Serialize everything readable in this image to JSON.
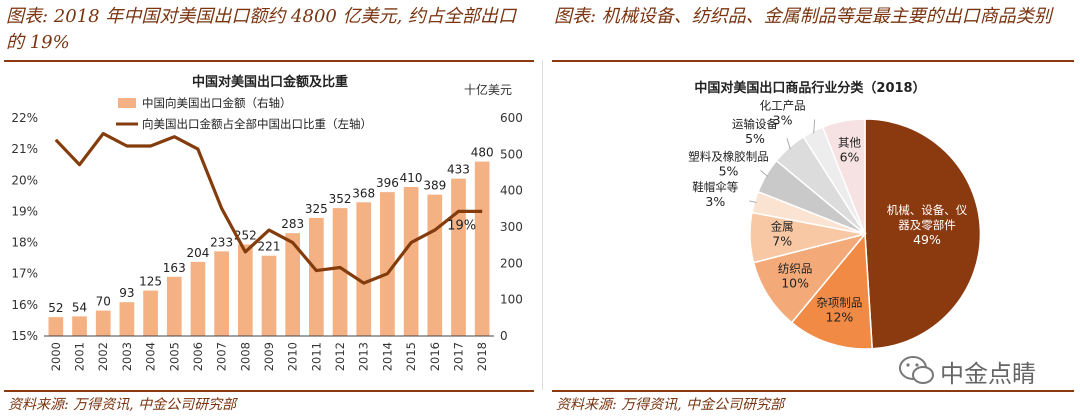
{
  "left": {
    "figure_title": "图表: 2018 年中国对美国出口额约 4800 亿美元, 约占全部出口的 19%",
    "source": "资料来源: 万得资讯, 中金公司研究部"
  },
  "right": {
    "figure_title": "图表: 机械设备、纺织品、金属制品等是最主要的出口商品类别",
    "source": "资料来源: 万得资讯, 中金公司研究部"
  },
  "watermark": "中金点睛",
  "colors": {
    "bar": "#F4B183",
    "line": "#843C0C",
    "title": "#7a3410"
  },
  "chart_data": [
    {
      "type": "bar+line",
      "title": "中国对美国出口金额及比重",
      "right_axis_unit": "十亿美元",
      "categories": [
        "2000",
        "2001",
        "2002",
        "2003",
        "2004",
        "2005",
        "2006",
        "2007",
        "2008",
        "2009",
        "2010",
        "2011",
        "2012",
        "2013",
        "2014",
        "2015",
        "2016",
        "2017",
        "2018"
      ],
      "series": [
        {
          "name": "中国向美国出口金额（右轴）",
          "kind": "bar",
          "axis": "right",
          "values": [
            52,
            54,
            70,
            93,
            125,
            163,
            204,
            233,
            252,
            221,
            283,
            325,
            352,
            368,
            396,
            410,
            389,
            433,
            480
          ]
        },
        {
          "name": "向美国出口金额占全部中国出口比重（左轴）",
          "kind": "line",
          "axis": "left",
          "values": [
            21.3,
            20.5,
            21.5,
            21.1,
            21.1,
            21.4,
            21.0,
            19.1,
            17.7,
            18.4,
            18.0,
            17.1,
            17.2,
            16.7,
            17.0,
            18.0,
            18.4,
            19.0,
            19.0
          ]
        }
      ],
      "end_label": "19%",
      "left_ylim": [
        15,
        22
      ],
      "left_yticks": [
        "15%",
        "16%",
        "17%",
        "18%",
        "19%",
        "20%",
        "21%",
        "22%"
      ],
      "right_ylim": [
        0,
        600
      ],
      "right_yticks": [
        "0",
        "100",
        "200",
        "300",
        "400",
        "500",
        "600"
      ]
    },
    {
      "type": "pie",
      "title": "中国对美国出口商品行业分类（2018）",
      "slices": [
        {
          "label": "机械、设备、仪器及零部件",
          "value": 49,
          "display": "49%",
          "color": "#8B3A0F"
        },
        {
          "label": "杂项制品",
          "value": 12,
          "display": "12%",
          "color": "#F08A45"
        },
        {
          "label": "纺织品",
          "value": 10,
          "display": "10%",
          "color": "#F4AA78"
        },
        {
          "label": "金属",
          "value": 7,
          "display": "7%",
          "color": "#F8C8A4"
        },
        {
          "label": "鞋帽伞等",
          "value": 3,
          "display": "3%",
          "color": "#FBE3D2"
        },
        {
          "label": "塑料及橡胶制品",
          "value": 5,
          "display": "5%",
          "color": "#C9C9C9"
        },
        {
          "label": "运输设备",
          "value": 5,
          "display": "5%",
          "color": "#DCDCDC"
        },
        {
          "label": "化工产品",
          "value": 3,
          "display": "3%",
          "color": "#EDEDED"
        },
        {
          "label": "其他",
          "value": 6,
          "display": "6%",
          "color": "#F6E2E2"
        }
      ]
    }
  ]
}
